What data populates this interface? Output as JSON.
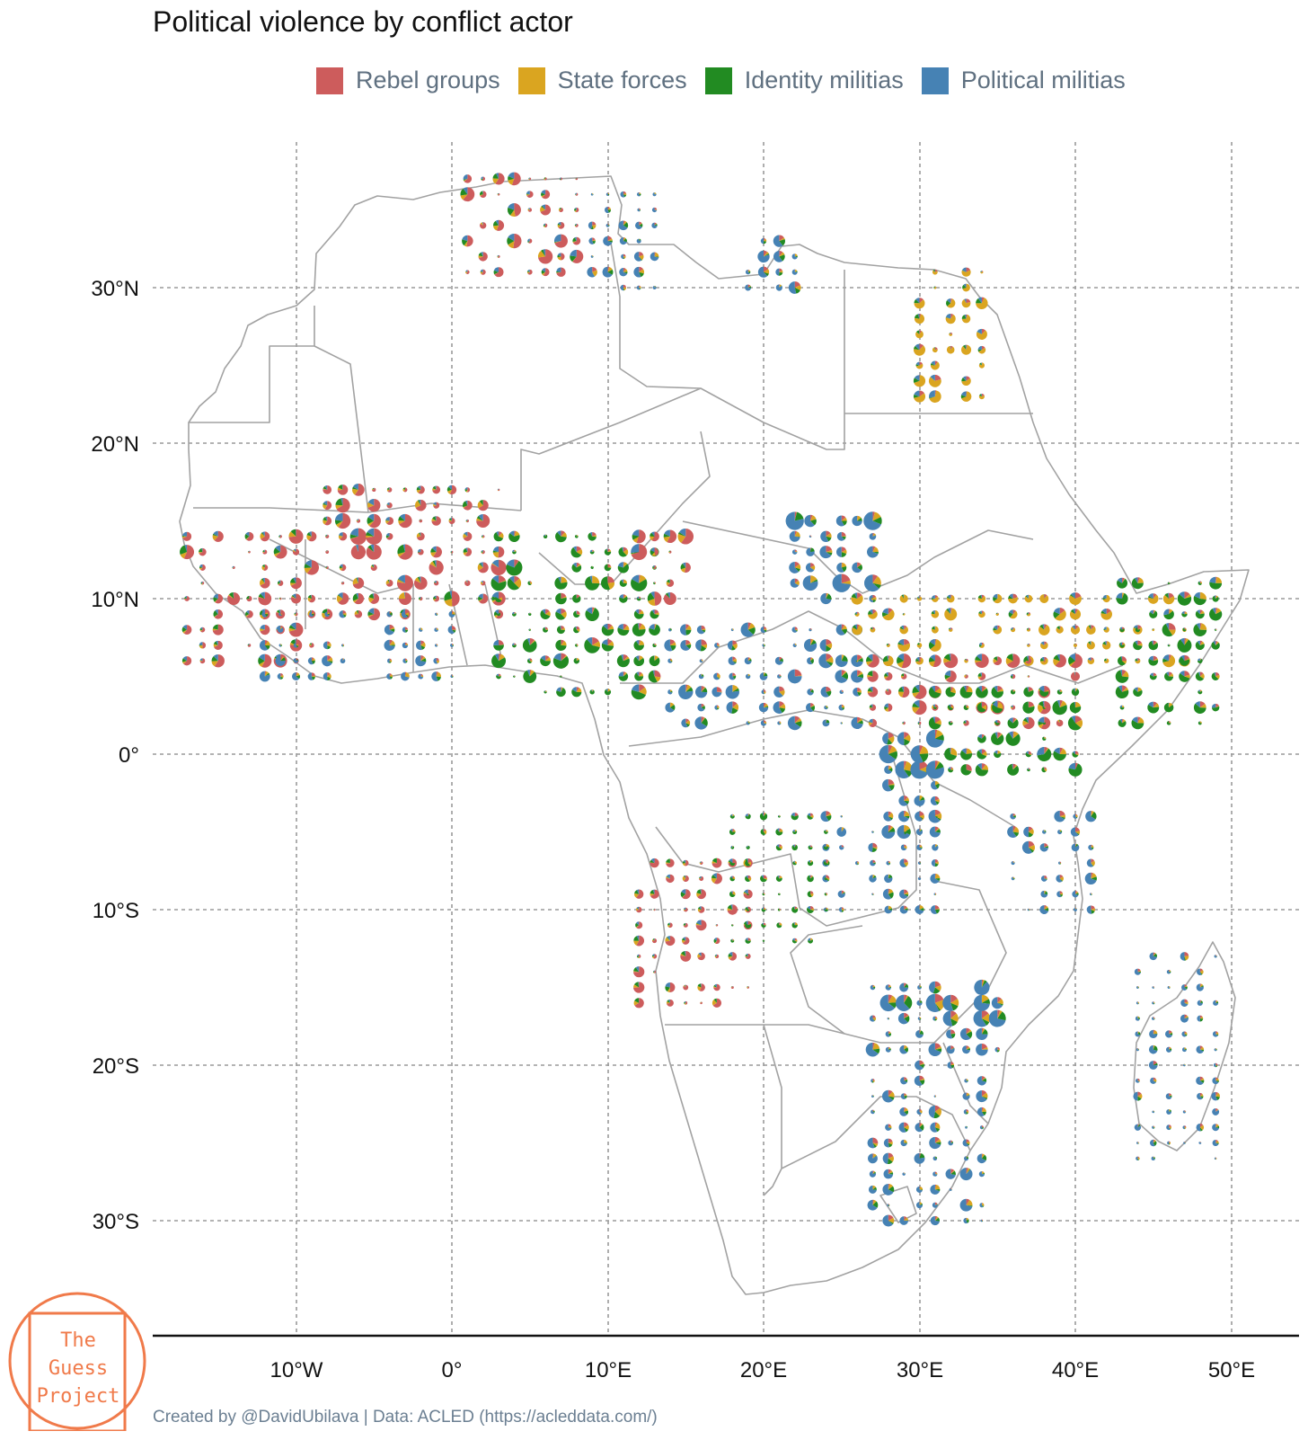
{
  "title": "Political violence by conflict actor",
  "legend": [
    {
      "label": "Rebel groups",
      "color": "#cd5c5c"
    },
    {
      "label": "State forces",
      "color": "#daa520"
    },
    {
      "label": "Identity militias",
      "color": "#228b22"
    },
    {
      "label": "Political militias",
      "color": "#4682b4"
    }
  ],
  "axes": {
    "longitude_ticks": [
      "10°W",
      "0°",
      "10°E",
      "20°E",
      "30°E",
      "40°E",
      "50°E"
    ],
    "latitude_ticks": [
      "30°N",
      "20°N",
      "10°N",
      "0°",
      "10°S",
      "20°S",
      "30°S"
    ]
  },
  "caption": "Created by @DavidUbilava | Data: ACLED (https://acleddata.com/)",
  "watermark": {
    "line1": "The",
    "line2": "Guess",
    "line3": "Project",
    "color": "#f07a4a"
  },
  "map": {
    "region": "Africa",
    "gridlines": true,
    "symbols": "pie charts of event shares by actor type, sized by number of events"
  }
}
